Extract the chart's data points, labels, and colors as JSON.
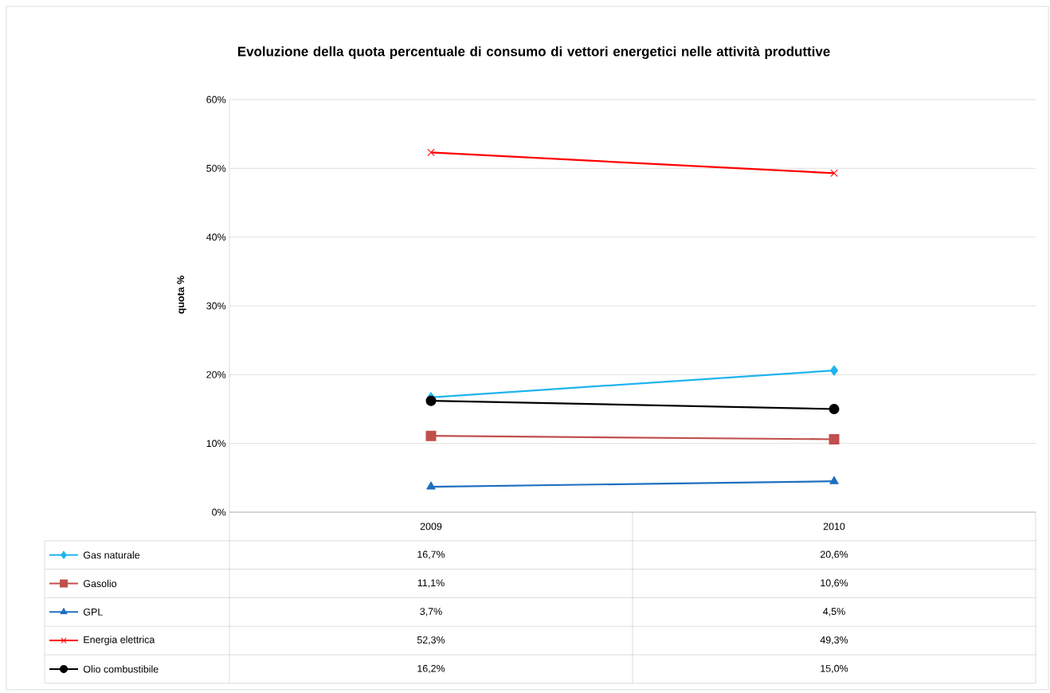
{
  "chart_data": {
    "type": "line",
    "title": "Evoluzione della quota percentuale di consumo di vettori energetici nelle attività produttive",
    "ylabel": "quota %",
    "categories": [
      "2009",
      "2010"
    ],
    "ylim": [
      0,
      60
    ],
    "yticks": [
      {
        "value": 0,
        "label": "0%"
      },
      {
        "value": 10,
        "label": "10%"
      },
      {
        "value": 20,
        "label": "20%"
      },
      {
        "value": 30,
        "label": "30%"
      },
      {
        "value": 40,
        "label": "40%"
      },
      {
        "value": 50,
        "label": "50%"
      },
      {
        "value": 60,
        "label": "60%"
      }
    ],
    "grid": "y",
    "legend": "bottom",
    "series": [
      {
        "name": "Gas naturale",
        "color": "#1fb4ee",
        "marker": "diamond",
        "values": [
          16.7,
          20.6
        ],
        "value_labels": [
          "16,7%",
          "20,6%"
        ]
      },
      {
        "name": "Gasolio",
        "color": "#c0504d",
        "marker": "square",
        "values": [
          11.1,
          10.6
        ],
        "value_labels": [
          "11,1%",
          "10,6%"
        ]
      },
      {
        "name": "GPL",
        "color": "#1f6fc0",
        "marker": "triangle",
        "values": [
          3.7,
          4.5
        ],
        "value_labels": [
          "3,7%",
          "4,5%"
        ]
      },
      {
        "name": "Energia elettrica",
        "color": "#ff0000",
        "marker": "cross",
        "values": [
          52.3,
          49.3
        ],
        "value_labels": [
          "52,3%",
          "49,3%"
        ]
      },
      {
        "name": "Olio combustibile",
        "color": "#000000",
        "marker": "circle",
        "values": [
          16.2,
          15.0
        ],
        "value_labels": [
          "16,2%",
          "15,0%"
        ]
      }
    ]
  }
}
